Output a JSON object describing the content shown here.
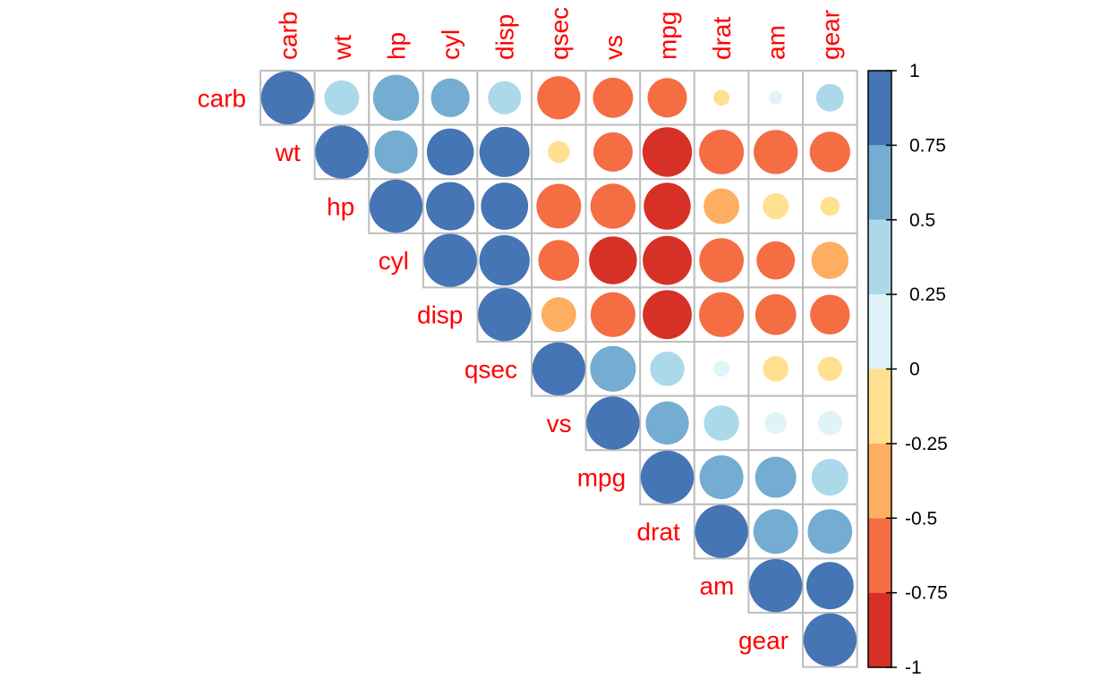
{
  "chart_data": {
    "type": "heatmap",
    "variables": [
      "carb",
      "wt",
      "hp",
      "cyl",
      "disp",
      "qsec",
      "vs",
      "mpg",
      "drat",
      "am",
      "gear"
    ],
    "layout": "upper-triangle",
    "matrix": [
      [
        1,
        0.43,
        0.75,
        0.53,
        0.39,
        -0.66,
        -0.57,
        -0.55,
        -0.09,
        0.06,
        0.27
      ],
      [
        0.43,
        1,
        0.66,
        0.78,
        0.89,
        -0.17,
        -0.55,
        -0.87,
        -0.71,
        -0.69,
        -0.58
      ],
      [
        0.75,
        0.66,
        1,
        0.83,
        0.79,
        -0.71,
        -0.72,
        -0.78,
        -0.45,
        -0.24,
        -0.13
      ],
      [
        0.53,
        0.78,
        0.83,
        1,
        0.9,
        -0.59,
        -0.81,
        -0.85,
        -0.7,
        -0.52,
        -0.49
      ],
      [
        0.39,
        0.89,
        0.79,
        0.9,
        1,
        -0.43,
        -0.71,
        -0.85,
        -0.71,
        -0.59,
        -0.56
      ],
      [
        -0.66,
        -0.17,
        -0.71,
        -0.59,
        -0.43,
        1,
        0.74,
        0.42,
        0.09,
        -0.23,
        -0.21
      ],
      [
        -0.57,
        -0.55,
        -0.72,
        -0.81,
        -0.71,
        0.74,
        1,
        0.66,
        0.44,
        0.17,
        0.21
      ],
      [
        -0.55,
        -0.87,
        -0.78,
        -0.85,
        -0.85,
        0.42,
        0.66,
        1,
        0.68,
        0.6,
        0.48
      ],
      [
        -0.09,
        -0.71,
        -0.45,
        -0.7,
        -0.71,
        0.09,
        0.44,
        0.68,
        1,
        0.71,
        0.7
      ],
      [
        0.06,
        -0.69,
        -0.24,
        -0.52,
        -0.59,
        -0.23,
        0.17,
        0.6,
        0.71,
        1,
        0.79
      ],
      [
        0.27,
        -0.58,
        -0.13,
        -0.49,
        -0.56,
        -0.21,
        0.21,
        0.48,
        0.7,
        0.79,
        1
      ]
    ],
    "colorbar": {
      "range": [
        -1,
        1
      ],
      "tick_values": [
        1,
        0.75,
        0.5,
        0.25,
        0,
        -0.25,
        -0.5,
        -0.75,
        -1
      ],
      "tick_labels": [
        "1",
        "0.75",
        "0.5",
        "0.25",
        "0",
        "-0.25",
        "-0.5",
        "-0.75",
        "-1"
      ],
      "bins": [
        {
          "from": 0.75,
          "to": 1,
          "color": "#4575B4"
        },
        {
          "from": 0.5,
          "to": 0.75,
          "color": "#74ADD1"
        },
        {
          "from": 0.25,
          "to": 0.5,
          "color": "#ABD9E9"
        },
        {
          "from": 0,
          "to": 0.25,
          "color": "#E0F3F8"
        },
        {
          "from": -0.25,
          "to": 0,
          "color": "#FEE090"
        },
        {
          "from": -0.5,
          "to": -0.25,
          "color": "#FDAE61"
        },
        {
          "from": -0.75,
          "to": -0.5,
          "color": "#F46D43"
        },
        {
          "from": -1,
          "to": -0.75,
          "color": "#D73027"
        }
      ]
    },
    "label_color": "#FF0000",
    "grid_color": "#BEBEBE",
    "title": "",
    "xlabel": "",
    "ylabel": ""
  }
}
